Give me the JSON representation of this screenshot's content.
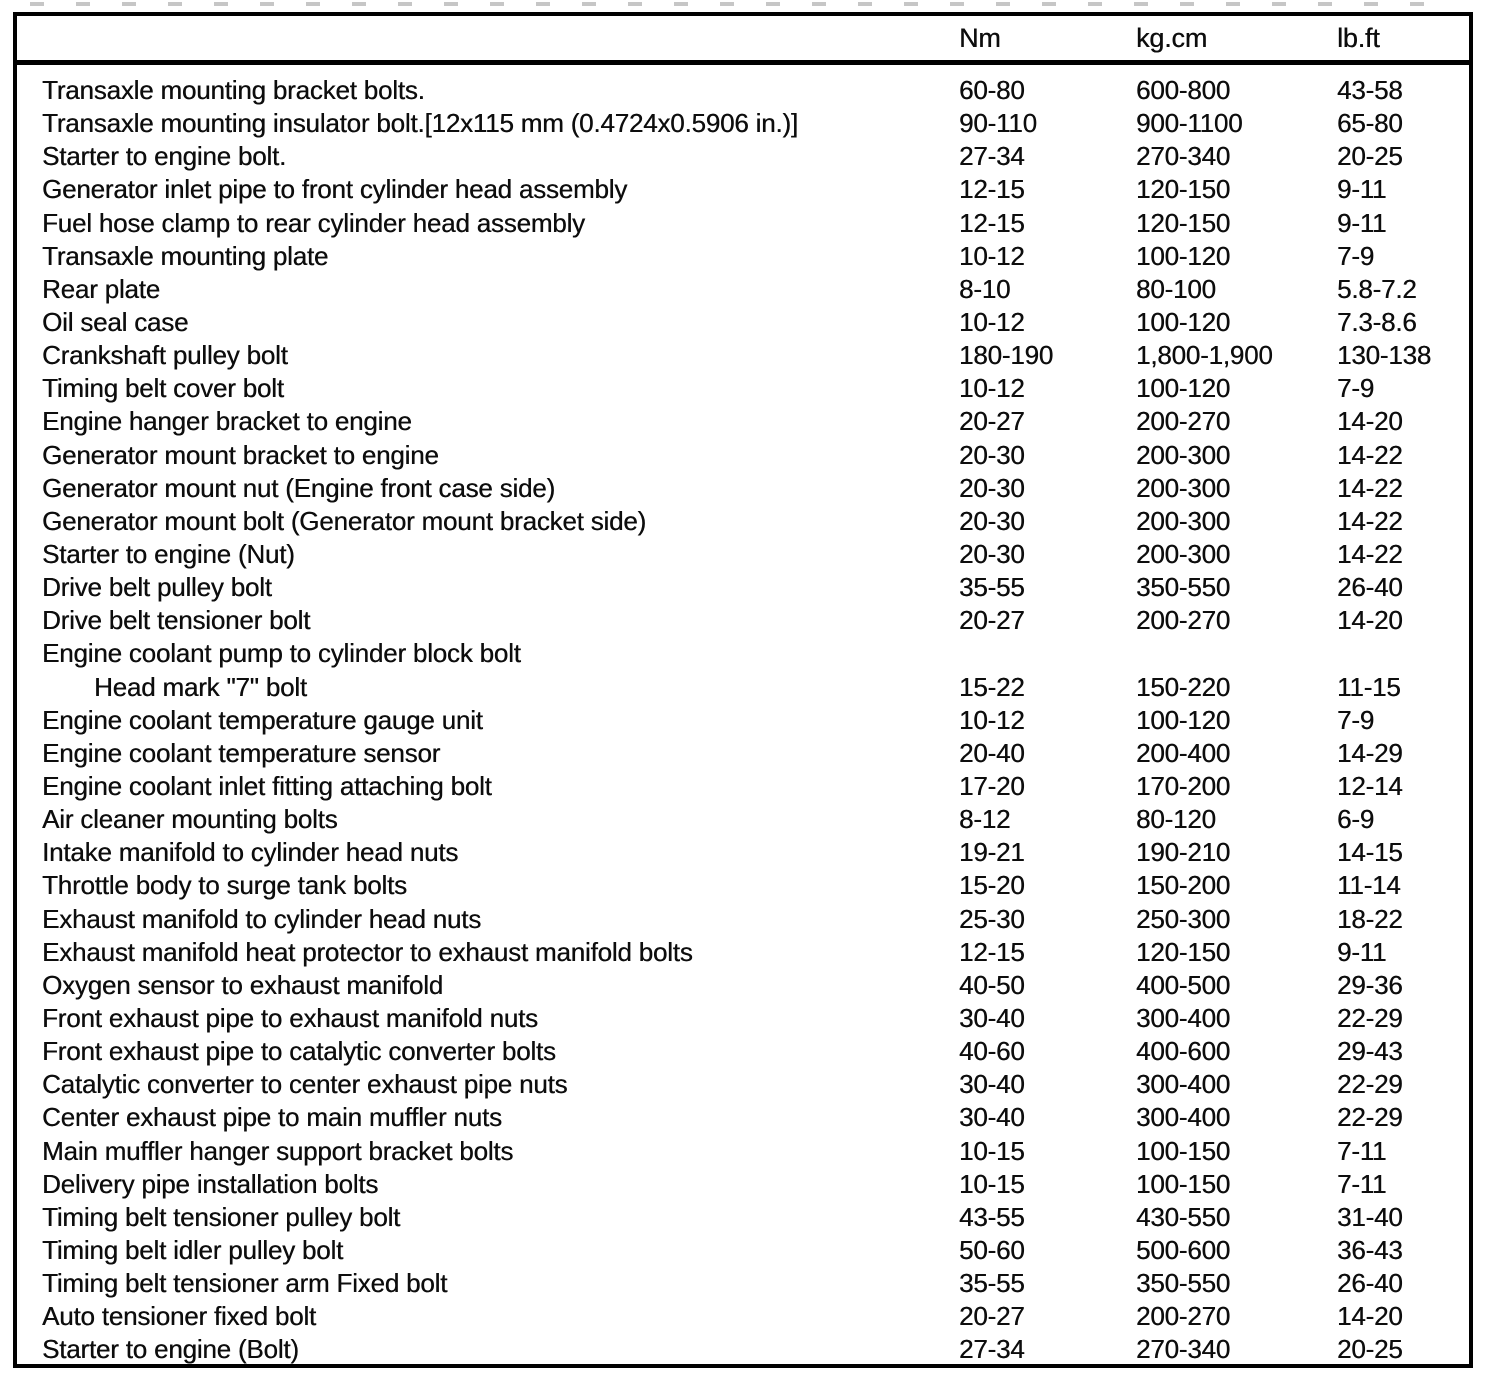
{
  "document": {
    "type": "scanned-torque-spec-table",
    "colors": {
      "text": "#0d0d0d",
      "border": "#000000",
      "background": "#ffffff"
    },
    "table": {
      "columns": [
        "Nm",
        "kg.cm",
        "lb.ft"
      ],
      "rows": [
        {
          "item": "Transaxle mounting bracket bolts.",
          "nm": "60-80",
          "kgcm": "600-800",
          "lbft": "43-58",
          "indent": false
        },
        {
          "item": "Transaxle mounting insulator bolt.[12x115 mm (0.4724x0.5906 in.)]",
          "nm": "90-110",
          "kgcm": "900-1100",
          "lbft": "65-80",
          "indent": false
        },
        {
          "item": "Starter to engine bolt.",
          "nm": "27-34",
          "kgcm": "270-340",
          "lbft": "20-25",
          "indent": false
        },
        {
          "item": "Generator inlet pipe to front cylinder head assembly",
          "nm": "12-15",
          "kgcm": "120-150",
          "lbft": "9-11",
          "indent": false
        },
        {
          "item": "Fuel hose clamp to rear cylinder head assembly",
          "nm": "12-15",
          "kgcm": "120-150",
          "lbft": "9-11",
          "indent": false
        },
        {
          "item": "Transaxle mounting plate",
          "nm": "10-12",
          "kgcm": "100-120",
          "lbft": "7-9",
          "indent": false
        },
        {
          "item": "Rear plate",
          "nm": "8-10",
          "kgcm": "80-100",
          "lbft": "5.8-7.2",
          "indent": false
        },
        {
          "item": "Oil seal case",
          "nm": "10-12",
          "kgcm": "100-120",
          "lbft": "7.3-8.6",
          "indent": false
        },
        {
          "item": "Crankshaft pulley bolt",
          "nm": "180-190",
          "kgcm": "1,800-1,900",
          "lbft": "130-138",
          "indent": false
        },
        {
          "item": "Timing belt cover bolt",
          "nm": "10-12",
          "kgcm": "100-120",
          "lbft": "7-9",
          "indent": false
        },
        {
          "item": "Engine hanger bracket to engine",
          "nm": "20-27",
          "kgcm": "200-270",
          "lbft": "14-20",
          "indent": false
        },
        {
          "item": "Generator mount bracket to engine",
          "nm": "20-30",
          "kgcm": "200-300",
          "lbft": "14-22",
          "indent": false
        },
        {
          "item": "Generator mount nut (Engine front case side)",
          "nm": "20-30",
          "kgcm": "200-300",
          "lbft": "14-22",
          "indent": false
        },
        {
          "item": "Generator mount bolt (Generator mount bracket side)",
          "nm": "20-30",
          "kgcm": "200-300",
          "lbft": "14-22",
          "indent": false
        },
        {
          "item": "Starter to engine (Nut)",
          "nm": "20-30",
          "kgcm": "200-300",
          "lbft": "14-22",
          "indent": false
        },
        {
          "item": "Drive belt pulley bolt",
          "nm": "35-55",
          "kgcm": "350-550",
          "lbft": "26-40",
          "indent": false
        },
        {
          "item": "Drive belt tensioner bolt",
          "nm": "20-27",
          "kgcm": "200-270",
          "lbft": "14-20",
          "indent": false
        },
        {
          "item": "Engine coolant pump to cylinder block bolt",
          "nm": "",
          "kgcm": "",
          "lbft": "",
          "indent": false
        },
        {
          "item": "Head mark \"7\" bolt",
          "nm": "15-22",
          "kgcm": "150-220",
          "lbft": "11-15",
          "indent": true
        },
        {
          "item": "Engine coolant temperature gauge unit",
          "nm": "10-12",
          "kgcm": "100-120",
          "lbft": "7-9",
          "indent": false
        },
        {
          "item": "Engine coolant temperature sensor",
          "nm": "20-40",
          "kgcm": "200-400",
          "lbft": "14-29",
          "indent": false
        },
        {
          "item": "Engine coolant inlet fitting attaching bolt",
          "nm": "17-20",
          "kgcm": "170-200",
          "lbft": "12-14",
          "indent": false
        },
        {
          "item": "Air cleaner mounting bolts",
          "nm": "8-12",
          "kgcm": "80-120",
          "lbft": "6-9",
          "indent": false
        },
        {
          "item": "Intake manifold to cylinder head nuts",
          "nm": "19-21",
          "kgcm": "190-210",
          "lbft": "14-15",
          "indent": false
        },
        {
          "item": "Throttle body to surge tank bolts",
          "nm": "15-20",
          "kgcm": "150-200",
          "lbft": "11-14",
          "indent": false
        },
        {
          "item": "Exhaust manifold to cylinder head nuts",
          "nm": "25-30",
          "kgcm": "250-300",
          "lbft": "18-22",
          "indent": false
        },
        {
          "item": "Exhaust manifold heat protector to exhaust manifold bolts",
          "nm": "12-15",
          "kgcm": "120-150",
          "lbft": "9-11",
          "indent": false
        },
        {
          "item": "Oxygen sensor to exhaust manifold",
          "nm": "40-50",
          "kgcm": "400-500",
          "lbft": "29-36",
          "indent": false
        },
        {
          "item": "Front exhaust pipe to exhaust manifold nuts",
          "nm": "30-40",
          "kgcm": "300-400",
          "lbft": "22-29",
          "indent": false
        },
        {
          "item": "Front exhaust pipe to catalytic converter bolts",
          "nm": "40-60",
          "kgcm": "400-600",
          "lbft": "29-43",
          "indent": false
        },
        {
          "item": "Catalytic converter to center exhaust pipe nuts",
          "nm": "30-40",
          "kgcm": "300-400",
          "lbft": "22-29",
          "indent": false
        },
        {
          "item": "Center exhaust pipe to main muffler nuts",
          "nm": "30-40",
          "kgcm": "300-400",
          "lbft": "22-29",
          "indent": false
        },
        {
          "item": "Main muffler hanger support bracket bolts",
          "nm": "10-15",
          "kgcm": "100-150",
          "lbft": "7-11",
          "indent": false
        },
        {
          "item": "Delivery pipe installation bolts",
          "nm": "10-15",
          "kgcm": "100-150",
          "lbft": "7-11",
          "indent": false
        },
        {
          "item": "Timing belt tensioner pulley bolt",
          "nm": "43-55",
          "kgcm": "430-550",
          "lbft": "31-40",
          "indent": false
        },
        {
          "item": "Timing belt idler pulley bolt",
          "nm": "50-60",
          "kgcm": "500-600",
          "lbft": "36-43",
          "indent": false
        },
        {
          "item": "Timing belt tensioner arm Fixed bolt",
          "nm": "35-55",
          "kgcm": "350-550",
          "lbft": "26-40",
          "indent": false
        },
        {
          "item": "Auto tensioner fixed bolt",
          "nm": "20-27",
          "kgcm": "200-270",
          "lbft": "14-20",
          "indent": false
        },
        {
          "item": "Starter to engine (Bolt)",
          "nm": "27-34",
          "kgcm": "270-340",
          "lbft": "20-25",
          "indent": false
        }
      ]
    }
  }
}
